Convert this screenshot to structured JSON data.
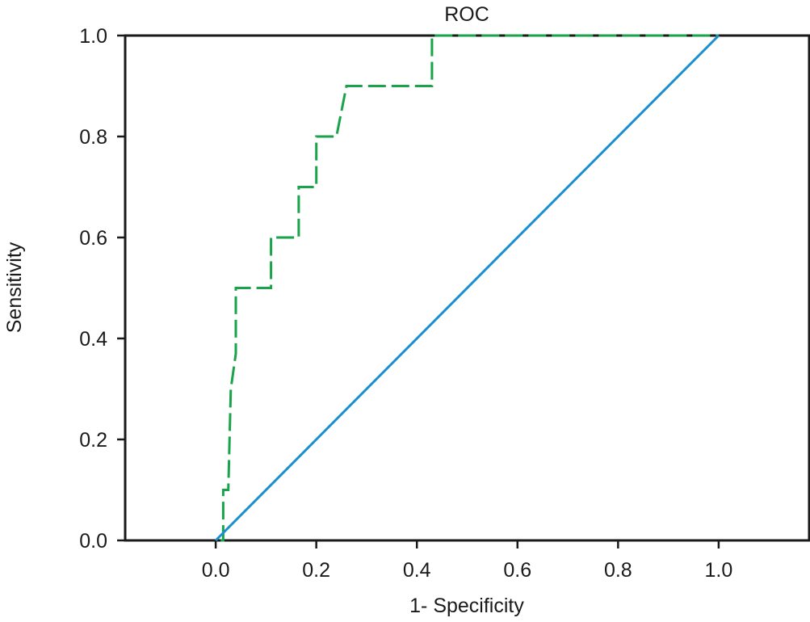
{
  "chart_data": {
    "type": "line",
    "title": "ROC",
    "xlabel": "1- Specificity",
    "ylabel": "Sensitivity",
    "xlim": [
      -0.18,
      1.18
    ],
    "ylim": [
      0.0,
      1.0
    ],
    "xticks": [
      "0.0",
      "0.2",
      "0.4",
      "0.6",
      "0.8",
      "1.0"
    ],
    "yticks": [
      "0.0",
      "0.2",
      "0.4",
      "0.6",
      "0.8",
      "1.0"
    ],
    "grid": false,
    "series": [
      {
        "style": "dashed",
        "color": "#1aa34a",
        "x": [
          0.01,
          0.015,
          0.015,
          0.025,
          0.03,
          0.04,
          0.04,
          0.11,
          0.11,
          0.165,
          0.165,
          0.2,
          0.2,
          0.24,
          0.26,
          0.43,
          0.43,
          1.0
        ],
        "y": [
          0.0,
          0.0,
          0.1,
          0.1,
          0.3,
          0.37,
          0.5,
          0.5,
          0.6,
          0.6,
          0.7,
          0.7,
          0.8,
          0.8,
          0.9,
          0.9,
          1.0,
          1.0
        ]
      },
      {
        "style": "solid",
        "color": "#1a8fd0",
        "x": [
          0.0,
          1.0
        ],
        "y": [
          0.0,
          1.0
        ]
      }
    ]
  }
}
